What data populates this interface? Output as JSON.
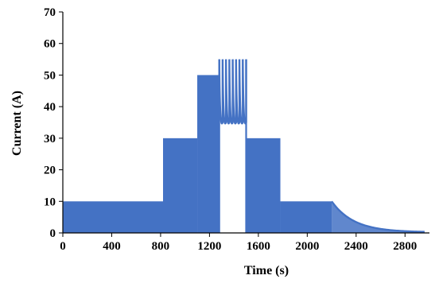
{
  "chart_data": {
    "type": "area",
    "title": "",
    "xlabel": "Time (s)",
    "ylabel": "Current (A)",
    "xlim": [
      0,
      3000
    ],
    "ylim": [
      0,
      70
    ],
    "x_ticks": [
      0,
      400,
      800,
      1200,
      1600,
      2000,
      2400,
      2800
    ],
    "x_tick_labels": [
      "0",
      "400",
      "800",
      "1200",
      "1600",
      "2000",
      "2400",
      "2800"
    ],
    "y_ticks": [
      0,
      10,
      20,
      30,
      40,
      50,
      60,
      70
    ],
    "y_tick_labels": [
      "0",
      "10",
      "20",
      "30",
      "40",
      "50",
      "60",
      "70"
    ],
    "grid": false,
    "legend": "none",
    "series_color": "#4472C4",
    "segments": [
      {
        "x": [
          0,
          820
        ],
        "y": 10,
        "kind": "filled-band"
      },
      {
        "x": [
          820,
          1100
        ],
        "y": 30,
        "kind": "filled-band"
      },
      {
        "x": [
          1100,
          1280
        ],
        "y": 50,
        "kind": "filled-band"
      },
      {
        "x": [
          1280,
          1500
        ],
        "y_peak": 55,
        "y_base": 34,
        "pulses": 8,
        "kind": "pulse-train"
      },
      {
        "x": [
          1500,
          1780
        ],
        "y": 30,
        "kind": "filled-band"
      },
      {
        "x": [
          1780,
          2200
        ],
        "y": 10,
        "kind": "filled-band"
      },
      {
        "x": [
          2200,
          2960
        ],
        "y_start": 10,
        "y_end": 0.2,
        "kind": "exponential-decay"
      }
    ]
  }
}
